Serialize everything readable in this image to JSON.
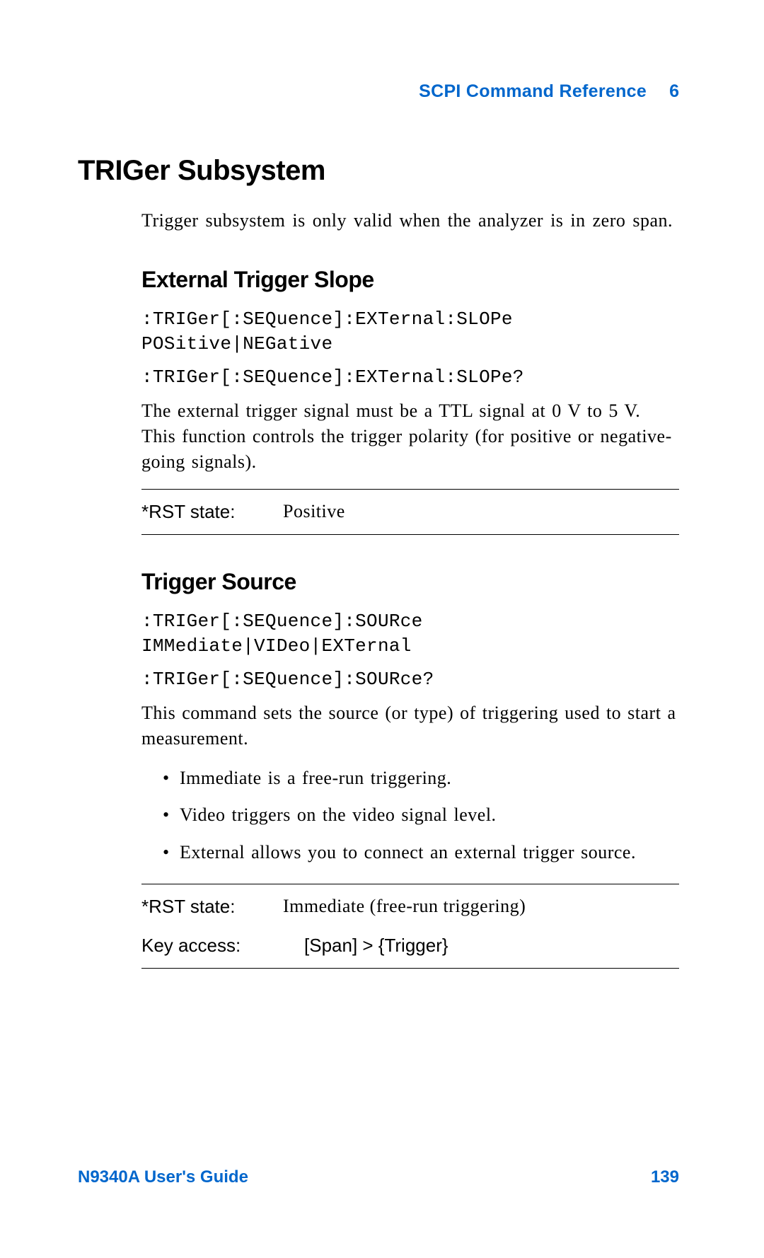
{
  "header": {
    "title": "SCPI Command Reference",
    "chapter": "6"
  },
  "h1": "TRIGer Subsystem",
  "intro": "Trigger subsystem is only valid when the analyzer is in zero span.",
  "section1": {
    "title": "External Trigger Slope",
    "code1": ":TRIGer[:SEQuence]:EXTernal:SLOPe POSitive|NEGative",
    "code2": ":TRIGer[:SEQuence]:EXTernal:SLOPe?",
    "body": "The external trigger signal must be a TTL signal at 0 V to 5 V. This function controls the trigger polarity (for positive or negative-going signals).",
    "table": {
      "rst_label": "*RST state:",
      "rst_value": "Positive"
    }
  },
  "section2": {
    "title": "Trigger Source",
    "code1": ":TRIGer[:SEQuence]:SOURce IMMediate|VIDeo|EXTernal",
    "code2": ":TRIGer[:SEQuence]:SOURce?",
    "body": "This command sets the source (or type) of triggering used to start a measurement.",
    "bullets": [
      "Immediate is a free-run triggering.",
      "Video triggers on the video signal level.",
      "External allows you to connect an external trigger source."
    ],
    "table": {
      "rst_label": "*RST state:",
      "rst_value": "Immediate (free-run triggering)",
      "key_label": "Key access:",
      "key_value": "[Span] > {Trigger}"
    }
  },
  "footer": {
    "guide": "N9340A User's Guide",
    "page": "139"
  }
}
